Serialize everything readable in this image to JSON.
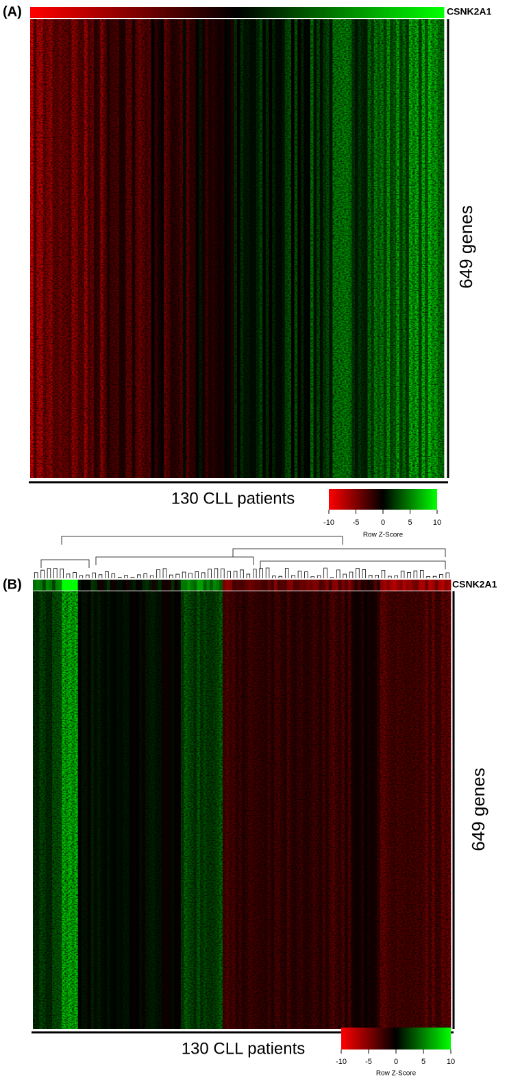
{
  "chart_data": [
    {
      "type": "heatmap",
      "panel_label": "(A)",
      "annotation_label": "CSNK2A1",
      "ylabel": "649 genes",
      "xlabel": "130 CLL patients",
      "colorbar": {
        "title": "Row Z-Score",
        "lim": [
          -10,
          10
        ],
        "ticks": [
          -10,
          -5,
          0,
          5,
          10
        ],
        "colors": [
          "#ff0000",
          "#000000",
          "#00ff00"
        ]
      }
    },
    {
      "type": "heatmap",
      "panel_label": "(B)",
      "annotation_label": "CSNK2A1",
      "ylabel": "649 genes",
      "xlabel": "130 CLL patients",
      "colorbar": {
        "title": "Row Z-Score",
        "lim": [
          -10,
          10
        ],
        "ticks": [
          -10,
          -5,
          0,
          5,
          10
        ],
        "colors": [
          "#ff0000",
          "#000000",
          "#00ff00"
        ]
      }
    }
  ]
}
